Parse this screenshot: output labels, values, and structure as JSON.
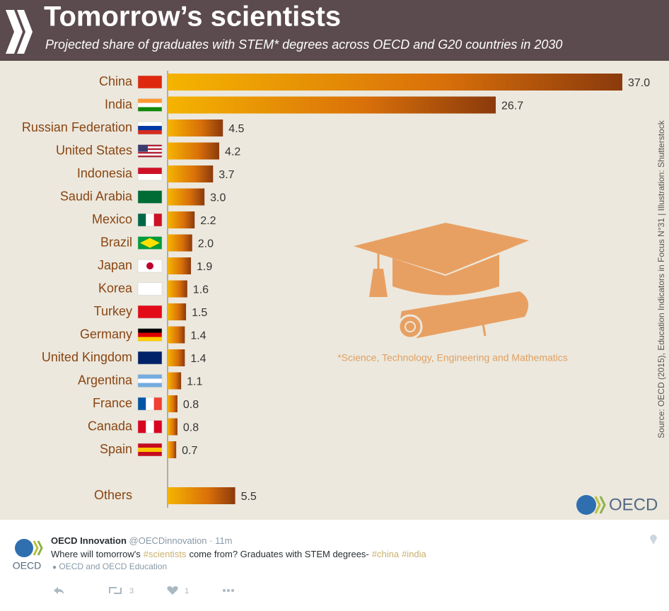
{
  "chart_data": {
    "type": "bar",
    "orientation": "horizontal",
    "title": "Tomorrow’s scientists",
    "subtitle": "Projected share of graduates with STEM* degrees across OECD and G20 countries in 2030",
    "categories": [
      "China",
      "India",
      "Russian Federation",
      "United States",
      "Indonesia",
      "Saudi Arabia",
      "Mexico",
      "Brazil",
      "Japan",
      "Korea",
      "Turkey",
      "Germany",
      "United Kingdom",
      "Argentina",
      "France",
      "Canada",
      "Spain",
      null,
      "Others"
    ],
    "values": [
      37.0,
      26.7,
      4.5,
      4.2,
      3.7,
      3.0,
      2.2,
      2.0,
      1.9,
      1.6,
      1.5,
      1.4,
      1.4,
      1.1,
      0.8,
      0.8,
      0.7,
      null,
      5.5
    ],
    "value_labels": [
      "37.0",
      "26.7",
      "4.5",
      "4.2",
      "3.7",
      "3.0",
      "2.2",
      "2.0",
      "1.9",
      "1.6",
      "1.5",
      "1.4",
      "1.4",
      "1.1",
      "0.8",
      "0.8",
      "0.7",
      null,
      "5.5"
    ],
    "color": "#f5b400",
    "color_end": "#8b3a0c",
    "xlim": [
      0,
      37
    ],
    "footnote": "*Science, Technology, Engineering and Mathematics",
    "source": "Source: OECD (2015), Education Indicators in Focus N°31 | Illustration: Shutterstock",
    "logo": "OECD"
  },
  "tweet": {
    "author": "OECD Innovation",
    "handle": "@OECDinnovation",
    "time": "11m",
    "avatar_label": "OECD",
    "text": [
      "Where will tomorrow's",
      "#scientists",
      "come from? Graduates with STEM degrees-",
      "#china",
      "#india"
    ],
    "mentions": "OECD and OECD Education",
    "retweets": 3,
    "likes": 1
  }
}
